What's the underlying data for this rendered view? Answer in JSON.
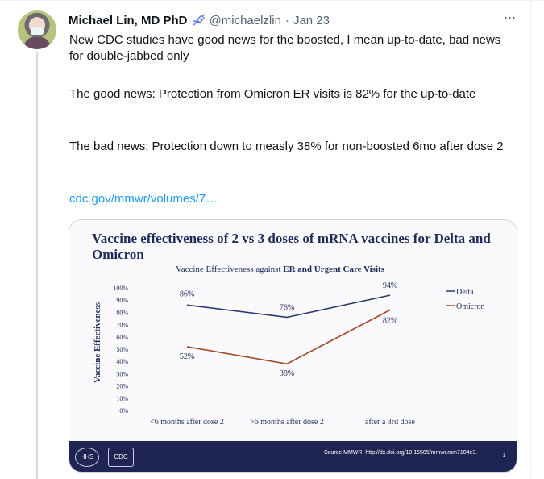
{
  "tweet": {
    "author_name": "Michael Lin, MD PhD",
    "author_handle": "@michaelzlin",
    "separator": "·",
    "date": "Jan 23",
    "more_label": "···",
    "text_paragraph_1": "New CDC studies have good news for the boosted, I mean up-to-date, bad news for double-jabbed only",
    "text_paragraph_2": "The good news: Protection from Omicron ER visits is 82% for the up-to-date",
    "text_paragraph_3": "The bad news: Protection down to measly 38% for non-boosted 6mo after dose 2",
    "link_text": "cdc.gov/mmwr/volumes/7…",
    "icons": [
      "dna-emoji-icon",
      "more-horizontal-icon"
    ]
  },
  "slide": {
    "title": "Vaccine effectiveness of 2 vs 3 doses of mRNA vaccines for Delta and Omicron",
    "chart_title_prefix": "Vaccine Effectiveness against ",
    "chart_title_bold": "ER and Urgent Care Visits",
    "source_text": "Source MMWR: http://dx.doi.org/10.15585/mmwr.mm7104e3.",
    "footer_logos": [
      "hhs-seal-icon",
      "cdc-logo-icon"
    ],
    "seal_hhs_text": "HHS",
    "seal_cdc_text": "CDC",
    "pager": "1"
  },
  "chart_data": {
    "type": "line",
    "categories": [
      "<6 months after dose 2",
      ">6 months after dose 2",
      "after a 3rd dose"
    ],
    "series": [
      {
        "name": "Delta",
        "values": [
          86,
          76,
          94
        ],
        "labels": [
          "86%",
          "76%",
          "94%"
        ],
        "color": "#2b3a6b"
      },
      {
        "name": "Omicron",
        "values": [
          52,
          38,
          82
        ],
        "labels": [
          "52%",
          "38%",
          "82%"
        ],
        "color": "#a5472a"
      }
    ],
    "ylabel": "Vaccine Effectiveness",
    "yticks": [
      "0%",
      "10%",
      "20%",
      "30%",
      "40%",
      "50%",
      "60%",
      "70%",
      "80%",
      "90%",
      "100%"
    ],
    "ylim": [
      0,
      100
    ],
    "grid": false,
    "legend_position": "right"
  }
}
